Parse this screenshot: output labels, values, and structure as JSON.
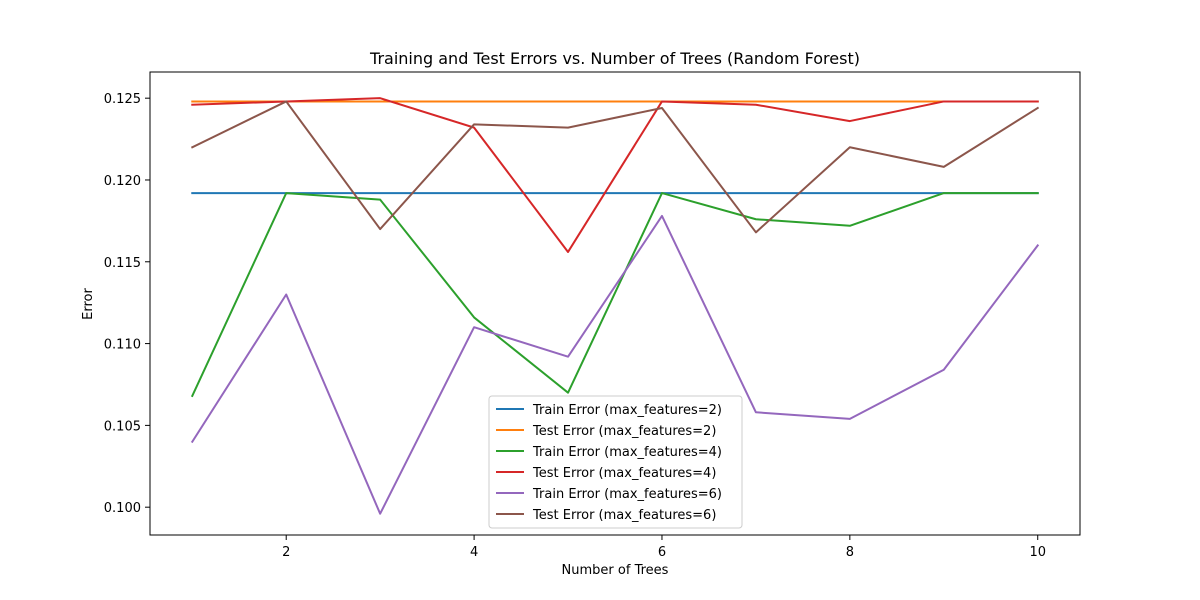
{
  "chart_data": {
    "type": "line",
    "title": "Training and Test Errors vs. Number of Trees (Random Forest)",
    "xlabel": "Number of Trees",
    "ylabel": "Error",
    "xlim": [
      0.55,
      10.45
    ],
    "ylim": [
      0.0983,
      0.1266
    ],
    "x_ticks": [
      2,
      4,
      6,
      8,
      10
    ],
    "y_ticks": [
      0.1,
      0.105,
      0.11,
      0.115,
      0.12,
      0.125
    ],
    "y_tick_labels": [
      "0.100",
      "0.105",
      "0.110",
      "0.115",
      "0.120",
      "0.125"
    ],
    "grid": false,
    "legend_position": "lower-center",
    "x": [
      1,
      2,
      3,
      4,
      5,
      6,
      7,
      8,
      9,
      10
    ],
    "series": [
      {
        "name": "Train Error (max_features=2)",
        "color": "#1f77b4",
        "values": [
          0.1192,
          0.1192,
          0.1192,
          0.1192,
          0.1192,
          0.1192,
          0.1192,
          0.1192,
          0.1192,
          0.1192
        ]
      },
      {
        "name": "Test Error (max_features=2)",
        "color": "#ff7f0e",
        "values": [
          0.1248,
          0.1248,
          0.1248,
          0.1248,
          0.1248,
          0.1248,
          0.1248,
          0.1248,
          0.1248,
          0.1248
        ]
      },
      {
        "name": "Train Error (max_features=4)",
        "color": "#2ca02c",
        "values": [
          0.1068,
          0.1192,
          0.1188,
          0.1116,
          0.107,
          0.1192,
          0.1176,
          0.1172,
          0.1192,
          0.1192
        ]
      },
      {
        "name": "Test Error (max_features=4)",
        "color": "#d62728",
        "values": [
          0.1246,
          0.1248,
          0.125,
          0.1232,
          0.1156,
          0.1248,
          0.1246,
          0.1236,
          0.1248,
          0.1248
        ]
      },
      {
        "name": "Train Error (max_features=6)",
        "color": "#9467bd",
        "values": [
          0.104,
          0.113,
          0.0996,
          0.111,
          0.1092,
          0.1178,
          0.1058,
          0.1054,
          0.1084,
          0.116
        ]
      },
      {
        "name": "Test Error (max_features=6)",
        "color": "#8c564b",
        "values": [
          0.122,
          0.1248,
          0.117,
          0.1234,
          0.1232,
          0.1244,
          0.1168,
          0.122,
          0.1208,
          0.1244
        ]
      }
    ]
  }
}
